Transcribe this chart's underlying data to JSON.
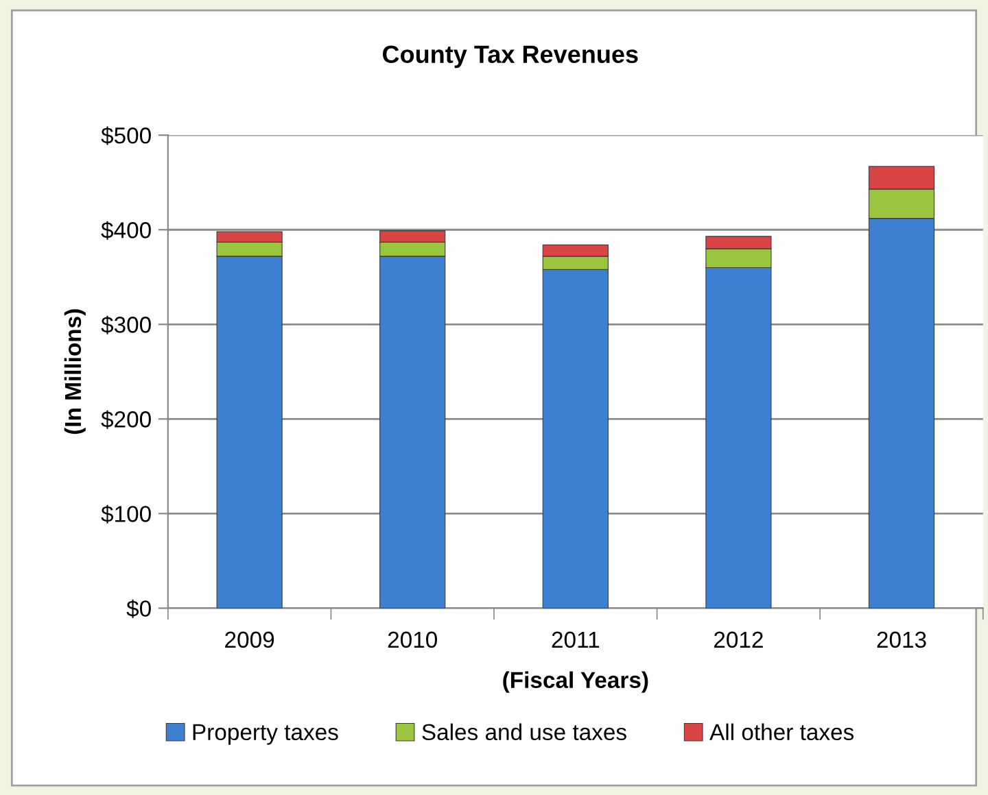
{
  "chart_data": {
    "type": "bar",
    "title": "County Tax Revenues",
    "xlabel": "(Fiscal Years)",
    "ylabel": "(In Millions)",
    "categories": [
      "2009",
      "2010",
      "2011",
      "2012",
      "2013"
    ],
    "stacked": true,
    "series": [
      {
        "name": "Property taxes",
        "color": "#3d7fd0",
        "values": [
          372,
          372,
          358,
          360,
          412
        ]
      },
      {
        "name": "Sales and use taxes",
        "color": "#9bc43f",
        "values": [
          15,
          15,
          14,
          20,
          31
        ]
      },
      {
        "name": "All other taxes",
        "color": "#d94444",
        "values": [
          11,
          12,
          12,
          13,
          24
        ]
      }
    ],
    "ylim": [
      0,
      500
    ],
    "yticks": [
      {
        "value": 0,
        "label": "$0"
      },
      {
        "value": 100,
        "label": "$100"
      },
      {
        "value": 200,
        "label": "$200"
      },
      {
        "value": 300,
        "label": "$300"
      },
      {
        "value": 400,
        "label": "$400"
      },
      {
        "value": 500,
        "label": "$500"
      }
    ],
    "grid": "y",
    "legend": "bottom"
  }
}
